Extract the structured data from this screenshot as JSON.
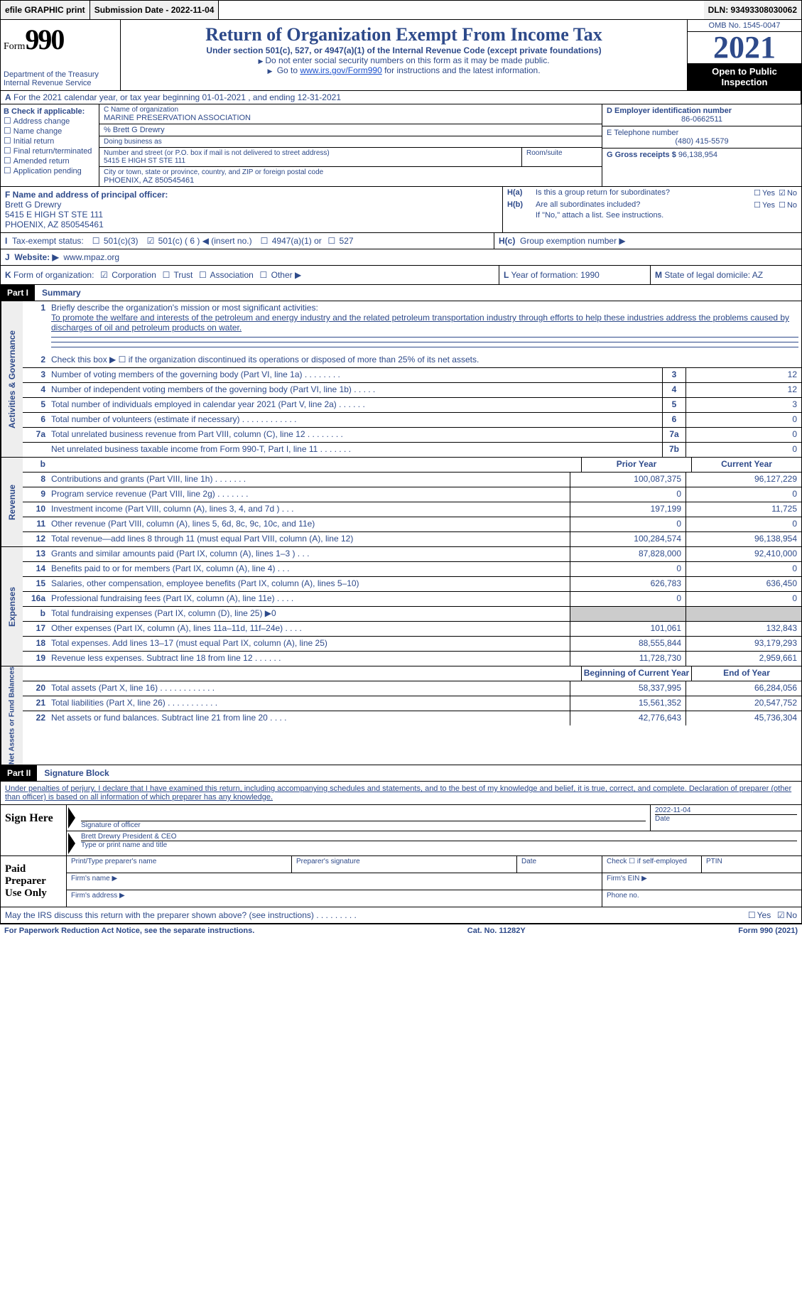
{
  "topbar": {
    "efile": "efile GRAPHIC print",
    "submission": "Submission Date - 2022-11-04",
    "dln": "DLN: 93493308030062"
  },
  "header": {
    "form_label": "Form",
    "form_num": "990",
    "dept": "Department of the Treasury\nInternal Revenue Service",
    "title": "Return of Organization Exempt From Income Tax",
    "subtitle": "Under section 501(c), 527, or 4947(a)(1) of the Internal Revenue Code (except private foundations)",
    "note1": "Do not enter social security numbers on this form as it may be made public.",
    "note2_pre": "Go to ",
    "note2_link": "www.irs.gov/Form990",
    "note2_post": " for instructions and the latest information.",
    "omb": "OMB No. 1545-0047",
    "year": "2021",
    "open": "Open to Public Inspection"
  },
  "section_a": {
    "label": "A",
    "text": " For the 2021 calendar year, or tax year beginning 01-01-2021     , and ending 12-31-2021"
  },
  "section_b": {
    "hdr": "B Check if applicable:",
    "items": [
      "Address change",
      "Name change",
      "Initial return",
      "Final return/terminated",
      "Amended return",
      "Application pending"
    ]
  },
  "section_c": {
    "name_lbl": "C Name of organization",
    "name": "MARINE PRESERVATION ASSOCIATION",
    "care_of": "% Brett G Drewry",
    "dba_lbl": "Doing business as",
    "addr_lbl": "Number and street (or P.O. box if mail is not delivered to street address)",
    "room_lbl": "Room/suite",
    "addr": "5415 E HIGH ST STE 111",
    "city_lbl": "City or town, state or province, country, and ZIP or foreign postal code",
    "city": "PHOENIX, AZ  850545461"
  },
  "section_d": {
    "lbl": "D Employer identification number",
    "val": "86-0662511"
  },
  "section_e": {
    "lbl": "E Telephone number",
    "val": "(480) 415-5579"
  },
  "section_g": {
    "lbl": "G Gross receipts $",
    "val": "96,138,954"
  },
  "section_f": {
    "lbl": "F Name and address of principal officer:",
    "name": "Brett G Drewry",
    "addr1": "5415 E HIGH ST STE 111",
    "addr2": "PHOENIX, AZ  850545461"
  },
  "section_h": {
    "a_lbl": "H(a)",
    "a_text": "Is this a group return for subordinates?",
    "b_lbl": "H(b)",
    "b_text": "Are all subordinates included?",
    "b_note": "If \"No,\" attach a list. See instructions.",
    "c_lbl": "H(c)",
    "c_text": "Group exemption number ▶",
    "yes": "Yes",
    "no": "No"
  },
  "section_i": {
    "lbl": "I",
    "text": "Tax-exempt status:",
    "opts": [
      "501(c)(3)",
      "501(c) ( 6 ) ◀ (insert no.)",
      "4947(a)(1) or",
      "527"
    ]
  },
  "section_j": {
    "lbl": "J",
    "text": "Website: ▶",
    "val": "www.mpaz.org"
  },
  "section_k": {
    "lbl": "K",
    "text": "Form of organization:",
    "opts": [
      "Corporation",
      "Trust",
      "Association",
      "Other ▶"
    ]
  },
  "section_l": {
    "lbl": "L",
    "text": "Year of formation:",
    "val": "1990"
  },
  "section_m": {
    "lbl": "M",
    "text": "State of legal domicile:",
    "val": "AZ"
  },
  "part1": {
    "hdr": "Part I",
    "title": "Summary"
  },
  "part2": {
    "hdr": "Part II",
    "title": "Signature Block"
  },
  "mission": {
    "num": "1",
    "lbl": "Briefly describe the organization's mission or most significant activities:",
    "text": "To promote the welfare and interests of the petroleum and energy industry and the related petroleum transportation industry through efforts to help these industries address the problems caused by discharges of oil and petroleum products on water."
  },
  "line2": "Check this box ▶ ☐  if the organization discontinued its operations or disposed of more than 25% of its net assets.",
  "gov_rows": [
    {
      "n": "3",
      "d": "Number of voting members of the governing body (Part VI, line 1a)   .     .     .     .     .     .     .     .",
      "b": "3",
      "v": "12"
    },
    {
      "n": "4",
      "d": "Number of independent voting members of the governing body (Part VI, line 1b)   .     .     .     .     .",
      "b": "4",
      "v": "12"
    },
    {
      "n": "5",
      "d": "Total number of individuals employed in calendar year 2021 (Part V, line 2a)   .     .     .     .     .     .",
      "b": "5",
      "v": "3"
    },
    {
      "n": "6",
      "d": "Total number of volunteers (estimate if necessary)     .     .     .     .     .     .     .     .     .     .     .     .",
      "b": "6",
      "v": "0"
    },
    {
      "n": "7a",
      "d": "Total unrelated business revenue from Part VIII, column (C), line 12    .     .     .     .     .     .     .     .",
      "b": "7a",
      "v": "0"
    },
    {
      "n": "",
      "d": "Net unrelated business taxable income from Form 990-T, Part I, line 11   .     .     .     .     .     .     .",
      "b": "7b",
      "v": "0"
    }
  ],
  "col_hdrs": {
    "prior": "Prior Year",
    "current": "Current Year",
    "begin": "Beginning of Current Year",
    "end": "End of Year"
  },
  "rev_rows": [
    {
      "n": "8",
      "d": "Contributions and grants (Part VIII, line 1h)    .     .     .     .     .     .     .",
      "p": "100,087,375",
      "c": "96,127,229"
    },
    {
      "n": "9",
      "d": "Program service revenue (Part VIII, line 2g)    .     .     .     .     .     .     .",
      "p": "0",
      "c": "0"
    },
    {
      "n": "10",
      "d": "Investment income (Part VIII, column (A), lines 3, 4, and 7d )    .     .     .",
      "p": "197,199",
      "c": "11,725"
    },
    {
      "n": "11",
      "d": "Other revenue (Part VIII, column (A), lines 5, 6d, 8c, 9c, 10c, and 11e)",
      "p": "0",
      "c": "0"
    },
    {
      "n": "12",
      "d": "Total revenue—add lines 8 through 11 (must equal Part VIII, column (A), line 12)",
      "p": "100,284,574",
      "c": "96,138,954"
    }
  ],
  "exp_rows": [
    {
      "n": "13",
      "d": "Grants and similar amounts paid (Part IX, column (A), lines 1–3 )   .     .     .",
      "p": "87,828,000",
      "c": "92,410,000"
    },
    {
      "n": "14",
      "d": "Benefits paid to or for members (Part IX, column (A), line 4)    .     .     .",
      "p": "0",
      "c": "0"
    },
    {
      "n": "15",
      "d": "Salaries, other compensation, employee benefits (Part IX, column (A), lines 5–10)",
      "p": "626,783",
      "c": "636,450"
    },
    {
      "n": "16a",
      "d": "Professional fundraising fees (Part IX, column (A), line 11e)   .     .     .     .",
      "p": "0",
      "c": "0"
    },
    {
      "n": "b",
      "d": "Total fundraising expenses (Part IX, column (D), line 25) ▶0",
      "p": "",
      "c": "",
      "grey": true
    },
    {
      "n": "17",
      "d": "Other expenses (Part IX, column (A), lines 11a–11d, 11f–24e)    .     .     .     .",
      "p": "101,061",
      "c": "132,843"
    },
    {
      "n": "18",
      "d": "Total expenses. Add lines 13–17 (must equal Part IX, column (A), line 25)",
      "p": "88,555,844",
      "c": "93,179,293"
    },
    {
      "n": "19",
      "d": "Revenue less expenses. Subtract line 18 from line 12   .     .     .     .     .     .",
      "p": "11,728,730",
      "c": "2,959,661"
    }
  ],
  "net_rows": [
    {
      "n": "20",
      "d": "Total assets (Part X, line 16)   .     .     .     .     .     .     .     .     .     .     .     .",
      "p": "58,337,995",
      "c": "66,284,056"
    },
    {
      "n": "21",
      "d": "Total liabilities (Part X, line 26)   .     .     .     .     .     .     .     .     .     .     .",
      "p": "15,561,352",
      "c": "20,547,752"
    },
    {
      "n": "22",
      "d": "Net assets or fund balances. Subtract line 21 from line 20   .     .     .     .",
      "p": "42,776,643",
      "c": "45,736,304"
    }
  ],
  "vtabs": {
    "gov": "Activities & Governance",
    "rev": "Revenue",
    "exp": "Expenses",
    "net": "Net Assets or Fund Balances"
  },
  "sig_text": "Under penalties of perjury, I declare that I have examined this return, including accompanying schedules and statements, and to the best of my knowledge and belief, it is true, correct, and complete. Declaration of preparer (other than officer) is based on all information of which preparer has any knowledge.",
  "sign": {
    "hdr": "Sign Here",
    "sig_lbl": "Signature of officer",
    "date": "2022-11-04",
    "date_lbl": "Date",
    "name": "Brett Drewry President & CEO",
    "name_lbl": "Type or print name and title"
  },
  "prep": {
    "hdr": "Paid Preparer Use Only",
    "c1": "Print/Type preparer's name",
    "c2": "Preparer's signature",
    "c3": "Date",
    "c4": "Check ☐ if self-employed",
    "c5": "PTIN",
    "firm_name": "Firm's name     ▶",
    "firm_ein": "Firm's EIN ▶",
    "firm_addr": "Firm's address ▶",
    "phone": "Phone no."
  },
  "discuss": {
    "text": "May the IRS discuss this return with the preparer shown above? (see instructions)    .     .     .     .     .     .     .     .     .",
    "yes": "Yes",
    "no": "No"
  },
  "footer": {
    "left": "For Paperwork Reduction Act Notice, see the separate instructions.",
    "mid": "Cat. No. 11282Y",
    "right": "Form 990 (2021)"
  }
}
